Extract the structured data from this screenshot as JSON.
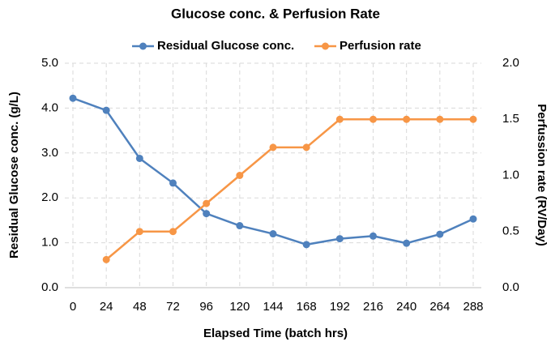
{
  "chart_data": {
    "type": "line",
    "title": "Glucose conc. & Perfusion Rate",
    "x_label": "Elapsed Time (batch hrs)",
    "y_label": "Residual Glucose conc. (g/L)",
    "y2_label": "Perfussion rate (RV/Day)",
    "x": [
      0,
      24,
      48,
      72,
      96,
      120,
      144,
      168,
      192,
      216,
      240,
      264,
      288
    ],
    "xlim": [
      0,
      288
    ],
    "xticks": [
      0,
      24,
      48,
      72,
      96,
      120,
      144,
      168,
      192,
      216,
      240,
      264,
      288
    ],
    "ylim": [
      0,
      5
    ],
    "yticks": [
      {
        "value": 0,
        "label": "0.0"
      },
      {
        "value": 1,
        "label": "1.0"
      },
      {
        "value": 2,
        "label": "2.0"
      },
      {
        "value": 3,
        "label": "3.0"
      },
      {
        "value": 4,
        "label": "4.0"
      },
      {
        "value": 5,
        "label": "5.0"
      }
    ],
    "y2lim": [
      0,
      2
    ],
    "y2ticks": [
      {
        "value": 0,
        "label": "0.0"
      },
      {
        "value": 0.5,
        "label": "0.5"
      },
      {
        "value": 1,
        "label": "1.0"
      },
      {
        "value": 1.5,
        "label": "1.5"
      },
      {
        "value": 2,
        "label": "2.0"
      }
    ],
    "grid": true,
    "legend": "top",
    "series": [
      {
        "name": "Residual Glucose conc.",
        "color": "#4f81bd",
        "values": [
          4.22,
          3.95,
          2.88,
          2.33,
          1.65,
          1.38,
          1.2,
          0.96,
          1.09,
          1.15,
          0.99,
          1.19,
          1.53
        ]
      },
      {
        "name": "Perfusion rate",
        "color": "#f79646",
        "axis": "y2",
        "values": [
          null,
          0.25,
          0.5,
          0.5,
          0.75,
          1.0,
          1.25,
          1.25,
          1.5,
          1.5,
          1.5,
          1.5,
          1.5
        ]
      }
    ]
  }
}
